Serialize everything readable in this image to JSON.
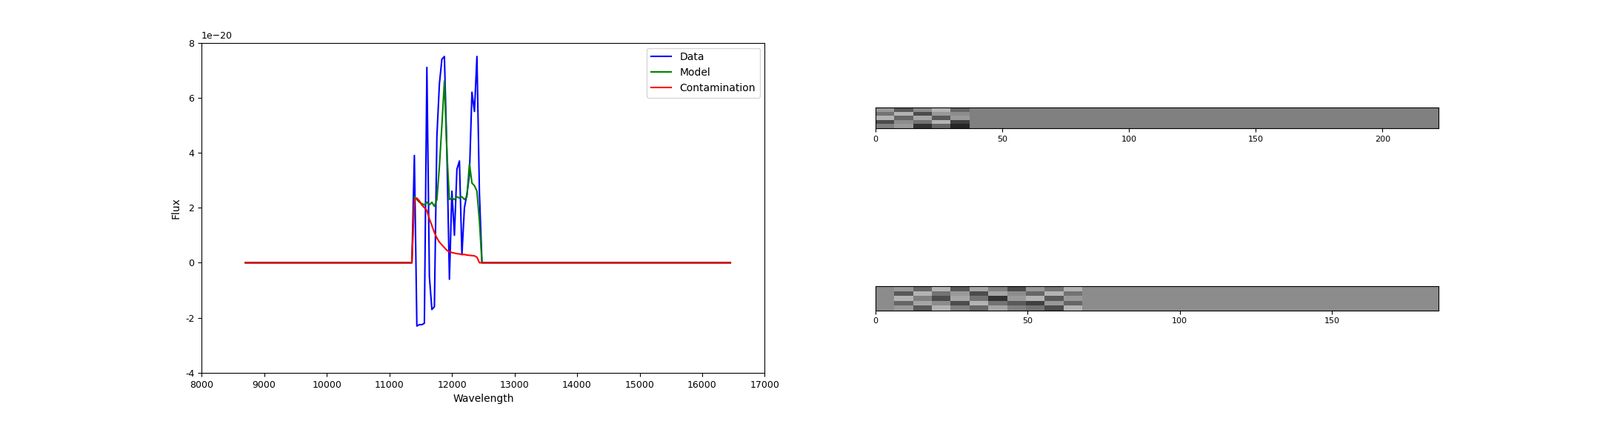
{
  "chart_data": [
    {
      "type": "line",
      "x_label": "Wavelength",
      "y_label": "Flux",
      "annotations": [
        "1e−20"
      ],
      "x": [
        8700,
        11360,
        11400,
        11440,
        11480,
        11520,
        11560,
        11600,
        11640,
        11680,
        11720,
        11760,
        11800,
        11840,
        11880,
        11920,
        11960,
        12000,
        12040,
        12080,
        12120,
        12160,
        12200,
        12240,
        12280,
        12320,
        12360,
        12400,
        12440,
        12480,
        16450
      ],
      "series": [
        {
          "name": "Data",
          "color": "#0000ff",
          "values": [
            0,
            0,
            3.9,
            -2.3,
            -2.25,
            -2.25,
            -2.2,
            7.1,
            -0.5,
            -1.7,
            -1.6,
            4.6,
            6.5,
            7.4,
            7.5,
            4.0,
            -0.6,
            2.6,
            1.0,
            3.4,
            3.7,
            0.3,
            2.0,
            2.5,
            3.2,
            6.2,
            5.5,
            7.5,
            2.5,
            0,
            0
          ]
        },
        {
          "name": "Model",
          "color": "#008000",
          "values": [
            0,
            0,
            2.4,
            2.3,
            2.2,
            2.15,
            2.1,
            2.2,
            2.1,
            2.2,
            2.05,
            2.3,
            3.5,
            5.0,
            6.6,
            4.0,
            2.3,
            2.35,
            2.3,
            2.4,
            2.35,
            2.4,
            2.3,
            2.4,
            3.6,
            2.9,
            2.8,
            2.6,
            1.5,
            0,
            0
          ]
        },
        {
          "name": "Contamination",
          "color": "#ff0000",
          "values": [
            0,
            0,
            2.3,
            2.35,
            2.25,
            2.1,
            2.0,
            1.9,
            1.6,
            1.35,
            1.1,
            0.9,
            0.75,
            0.65,
            0.55,
            0.45,
            0.4,
            0.37,
            0.35,
            0.33,
            0.32,
            0.3,
            0.3,
            0.28,
            0.27,
            0.26,
            0.25,
            0.2,
            0,
            0,
            0
          ]
        }
      ],
      "xlim": [
        8000,
        17000
      ],
      "xticks": [
        8000,
        9000,
        10000,
        11000,
        12000,
        13000,
        14000,
        15000,
        16000,
        17000
      ],
      "ylim": [
        -4,
        8
      ],
      "yticks": [
        -4,
        -2,
        0,
        2,
        4,
        6,
        8
      ],
      "legend": "upper right"
    },
    {
      "type": "heatmap",
      "tick_labels": "x",
      "xlim": [
        0,
        222
      ],
      "xticks": [
        0,
        50,
        100,
        150,
        200
      ],
      "zlim": [
        0,
        1
      ],
      "cells": [
        [
          0.6,
          0.35,
          0.55,
          0.7,
          0.4,
          0.5,
          0.5,
          0.5,
          0.5,
          0.5,
          0.5,
          0.5,
          0.5,
          0.5,
          0.5,
          0.5,
          0.5,
          0.5,
          0.5,
          0.5,
          0.5,
          0.5,
          0.5,
          0.5,
          0.5,
          0.5,
          0.5,
          0.5,
          0.5,
          0.5
        ],
        [
          0.45,
          0.7,
          0.3,
          0.6,
          0.55,
          0.5,
          0.5,
          0.5,
          0.5,
          0.5,
          0.5,
          0.5,
          0.5,
          0.5,
          0.5,
          0.5,
          0.5,
          0.5,
          0.5,
          0.5,
          0.5,
          0.5,
          0.5,
          0.5,
          0.5,
          0.5,
          0.5,
          0.5,
          0.5,
          0.5
        ],
        [
          0.7,
          0.4,
          0.65,
          0.35,
          0.6,
          0.5,
          0.5,
          0.5,
          0.5,
          0.5,
          0.5,
          0.5,
          0.5,
          0.5,
          0.5,
          0.5,
          0.5,
          0.5,
          0.5,
          0.5,
          0.5,
          0.5,
          0.5,
          0.5,
          0.5,
          0.5,
          0.5,
          0.5,
          0.5,
          0.5
        ],
        [
          0.3,
          0.55,
          0.45,
          0.7,
          0.25,
          0.5,
          0.5,
          0.5,
          0.5,
          0.5,
          0.5,
          0.5,
          0.5,
          0.5,
          0.5,
          0.5,
          0.5,
          0.5,
          0.5,
          0.5,
          0.5,
          0.5,
          0.5,
          0.5,
          0.5,
          0.5,
          0.5,
          0.5,
          0.5,
          0.5
        ],
        [
          0.5,
          0.6,
          0.2,
          0.4,
          0.15,
          0.5,
          0.5,
          0.5,
          0.5,
          0.5,
          0.5,
          0.5,
          0.5,
          0.5,
          0.5,
          0.5,
          0.5,
          0.5,
          0.5,
          0.5,
          0.5,
          0.5,
          0.5,
          0.5,
          0.5,
          0.5,
          0.5,
          0.5,
          0.5,
          0.5
        ]
      ]
    },
    {
      "type": "heatmap",
      "tick_labels": "x",
      "xlim": [
        0,
        185
      ],
      "xticks": [
        0,
        50,
        100,
        150
      ],
      "zlim": [
        0,
        1
      ],
      "cells": [
        [
          0.55,
          0.6,
          0.4,
          0.7,
          0.35,
          0.65,
          0.5,
          0.3,
          0.6,
          0.45,
          0.7,
          0.55,
          0.55,
          0.55,
          0.55,
          0.55,
          0.55,
          0.55,
          0.55,
          0.55,
          0.55,
          0.55,
          0.55,
          0.55,
          0.55,
          0.55,
          0.55,
          0.55,
          0.55,
          0.55
        ],
        [
          0.55,
          0.35,
          0.7,
          0.45,
          0.6,
          0.3,
          0.65,
          0.55,
          0.4,
          0.7,
          0.45,
          0.55,
          0.55,
          0.55,
          0.55,
          0.55,
          0.55,
          0.55,
          0.55,
          0.55,
          0.55,
          0.55,
          0.55,
          0.55,
          0.55,
          0.55,
          0.55,
          0.55,
          0.55,
          0.55
        ],
        [
          0.55,
          0.7,
          0.5,
          0.3,
          0.65,
          0.45,
          0.2,
          0.6,
          0.7,
          0.35,
          0.6,
          0.55,
          0.55,
          0.55,
          0.55,
          0.55,
          0.55,
          0.55,
          0.55,
          0.55,
          0.55,
          0.55,
          0.55,
          0.55,
          0.55,
          0.55,
          0.55,
          0.55,
          0.55,
          0.55
        ],
        [
          0.55,
          0.4,
          0.65,
          0.55,
          0.3,
          0.7,
          0.45,
          0.35,
          0.25,
          0.6,
          0.4,
          0.55,
          0.55,
          0.55,
          0.55,
          0.55,
          0.55,
          0.55,
          0.55,
          0.55,
          0.55,
          0.55,
          0.55,
          0.55,
          0.55,
          0.55,
          0.55,
          0.55,
          0.55,
          0.55
        ],
        [
          0.55,
          0.6,
          0.35,
          0.7,
          0.5,
          0.4,
          0.65,
          0.5,
          0.45,
          0.3,
          0.7,
          0.55,
          0.55,
          0.55,
          0.55,
          0.55,
          0.55,
          0.55,
          0.55,
          0.55,
          0.55,
          0.55,
          0.55,
          0.55,
          0.55,
          0.55,
          0.55,
          0.55,
          0.55,
          0.55
        ]
      ]
    }
  ]
}
